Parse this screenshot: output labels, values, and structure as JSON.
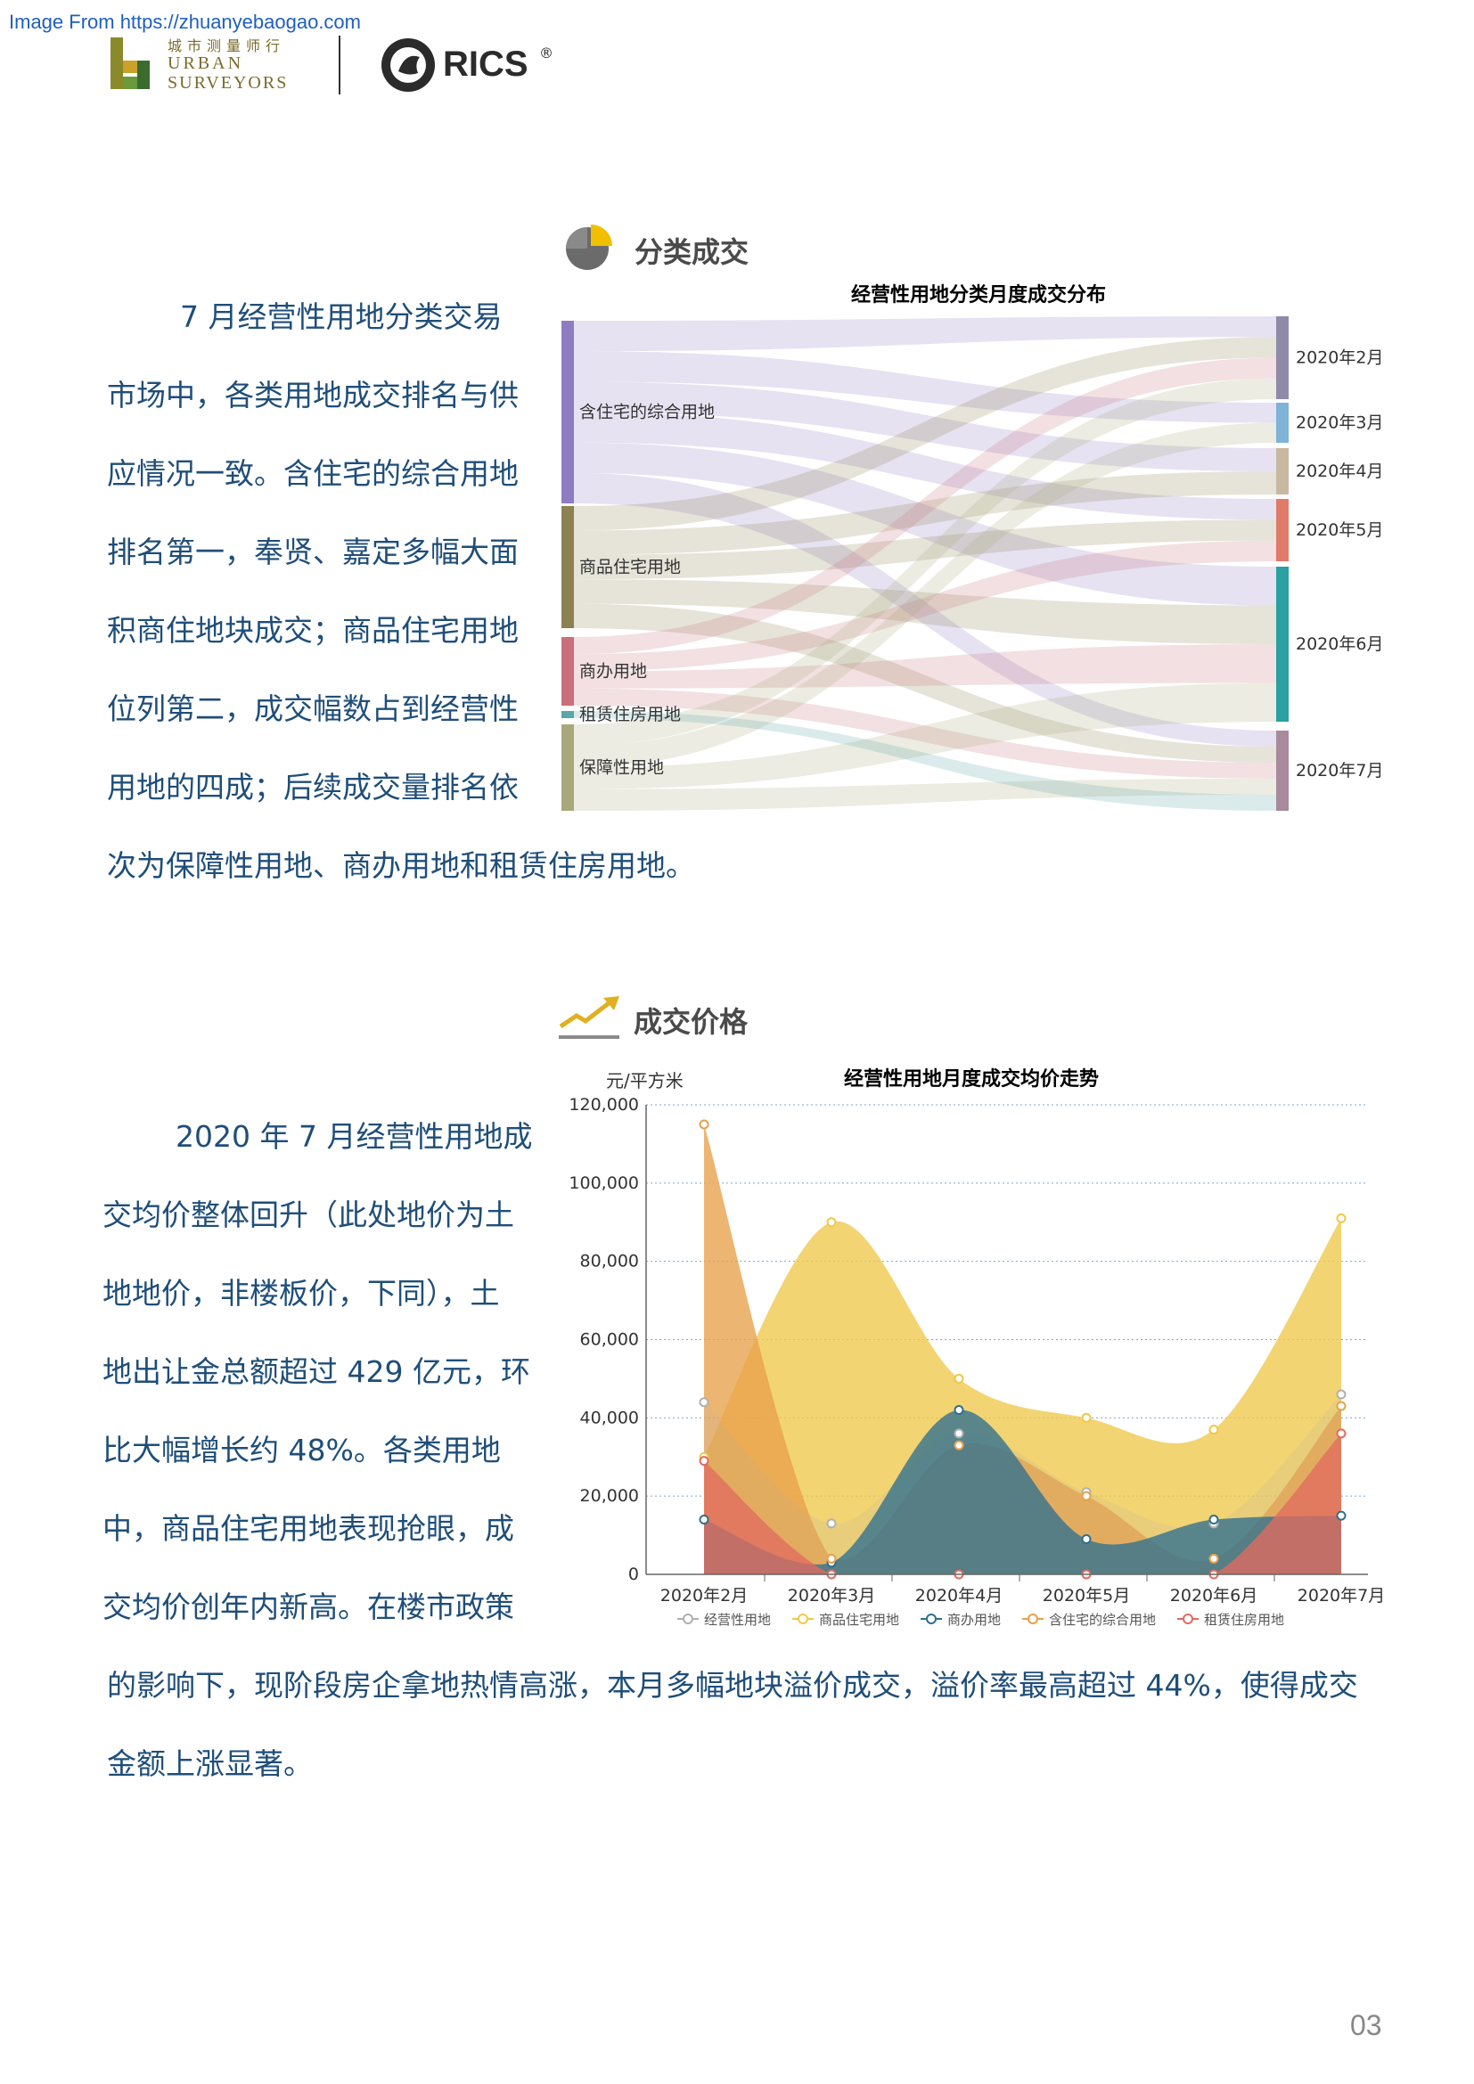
{
  "header": {
    "source_text": "Image From https://zhuanyebaogao.com",
    "logo_cn": "城市测量师行",
    "logo_en_1": "URBAN",
    "logo_en_2": "SURVEYORS",
    "rics": "RICS",
    "rics_reg": "®"
  },
  "section1": {
    "title": "分类成交",
    "chart_title": "经营性用地分类月度成交分布",
    "paragraph_lines": [
      "7 月经营性用地分类交易",
      "市场中，各类用地成交排名与供",
      "应情况一致。含住宅的综合用地",
      "排名第一，奉贤、嘉定多幅大面",
      "积商住地块成交；商品住宅用地",
      "位列第二，成交幅数占到经营性",
      "用地的四成；后续成交量排名依",
      "次为保障性用地、商办用地和租赁住房用地。"
    ]
  },
  "section2": {
    "title": "成交价格",
    "paragraph_lines": [
      "2020 年 7 月经营性用地成",
      "交均价整体回升（此处地价为土",
      "地地价，非楼板价，下同），土",
      "地出让金总额超过 429 亿元，环",
      "比大幅增长约 48%。各类用地",
      "中，商品住宅用地表现抢眼，成",
      "交均价创年内新高。在楼市政策",
      "的影响下，现阶段房企拿地热情高涨，本月多幅地块溢价成交，溢价率最高超过 44%，使得成交",
      "金额上涨显著。"
    ]
  },
  "chart_data": [
    {
      "type": "sankey",
      "title": "经营性用地分类月度成交分布",
      "sources": [
        {
          "name": "含住宅的综合用地",
          "color": "#8e7cc3"
        },
        {
          "name": "商品住宅用地",
          "color": "#8b8153"
        },
        {
          "name": "商办用地",
          "color": "#c9707a"
        },
        {
          "name": "租赁住房用地",
          "color": "#5aa6a8"
        },
        {
          "name": "保障性用地",
          "color": "#a9a87a"
        }
      ],
      "targets": [
        {
          "name": "2020年2月",
          "color": "#8e8aa8"
        },
        {
          "name": "2020年3月",
          "color": "#7fb3d8"
        },
        {
          "name": "2020年4月",
          "color": "#c9b8a0"
        },
        {
          "name": "2020年5月",
          "color": "#e07b6a"
        },
        {
          "name": "2020年6月",
          "color": "#2aa0a3"
        },
        {
          "name": "2020年7月",
          "color": "#a88a9c"
        }
      ]
    },
    {
      "type": "area",
      "title": "经营性用地月度成交均价走势",
      "ylabel": "元/平方米",
      "ylim": [
        0,
        120000
      ],
      "y_ticks": [
        "0",
        "20,000",
        "40,000",
        "60,000",
        "80,000",
        "100,000",
        "120,000"
      ],
      "y_tick_values": [
        0,
        20000,
        40000,
        60000,
        80000,
        100000,
        120000
      ],
      "categories": [
        "2020年2月",
        "2020年3月",
        "2020年4月",
        "2020年5月",
        "2020年6月",
        "2020年7月"
      ],
      "series": [
        {
          "name": "经营性用地",
          "color": "#b0b0b0",
          "values": [
            44000,
            13000,
            36000,
            21000,
            13000,
            46000
          ]
        },
        {
          "name": "商品住宅用地",
          "color": "#f0c84a",
          "values": [
            30000,
            90000,
            50000,
            40000,
            37000,
            91000
          ]
        },
        {
          "name": "商办用地",
          "color": "#2f6f8f",
          "values": [
            14000,
            3000,
            42000,
            9000,
            14000,
            15000
          ]
        },
        {
          "name": "含住宅的综合用地",
          "color": "#e8a04a",
          "values": [
            115000,
            4000,
            33000,
            20000,
            4000,
            43000
          ]
        },
        {
          "name": "租赁住房用地",
          "color": "#e06b5f",
          "values": [
            29000,
            0,
            0,
            0,
            0,
            36000
          ]
        }
      ],
      "grid": true,
      "legend": "bottom"
    }
  ],
  "page_number": "03"
}
